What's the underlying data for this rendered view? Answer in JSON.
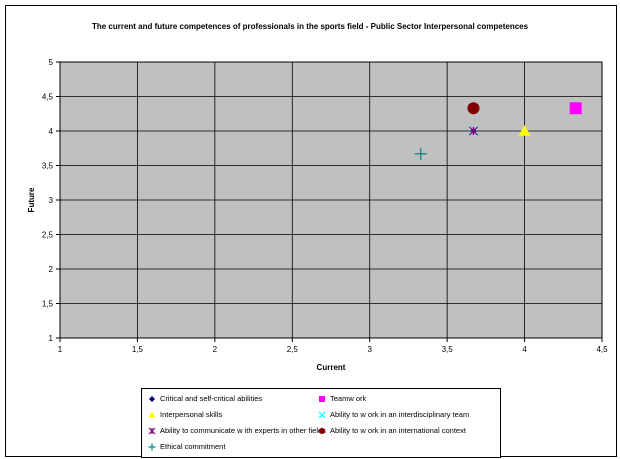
{
  "chart_data": {
    "type": "scatter",
    "title": "The current and future competences of professionals in the sports field - Public Sector Interpersonal competences",
    "xlabel": "Current",
    "ylabel": "Future",
    "xlim": [
      1,
      4.5
    ],
    "ylim": [
      1,
      5
    ],
    "xticks": [
      "1",
      "1,5",
      "2",
      "2,5",
      "3",
      "3,5",
      "4",
      "4,5"
    ],
    "yticks": [
      "1",
      "1,5",
      "2",
      "2,5",
      "3",
      "3,5",
      "4",
      "4,5",
      "5"
    ],
    "grid": true,
    "legend_position": "bottom",
    "series": [
      {
        "name": "Critical and self-critical abilities",
        "x": 3.67,
        "y": 4.0,
        "marker": "diamond",
        "color": "#000080"
      },
      {
        "name": "Teamw ork",
        "x": 4.33,
        "y": 4.33,
        "marker": "square",
        "color": "#ff00ff"
      },
      {
        "name": "Interpersonal skills",
        "x": 4.0,
        "y": 4.0,
        "marker": "triangle",
        "color": "#ffff00"
      },
      {
        "name": "Ability to w ork in an interdisciplinary team",
        "x": 3.67,
        "y": 4.0,
        "marker": "x",
        "color": "#00ffff"
      },
      {
        "name": "Ability to communicate w ith experts in other fields",
        "x": 3.67,
        "y": 4.0,
        "marker": "star",
        "color": "#800080"
      },
      {
        "name": "Ability to w ork in an international context",
        "x": 3.67,
        "y": 4.33,
        "marker": "circle",
        "color": "#800000"
      },
      {
        "name": "Ethical commitment",
        "x": 3.33,
        "y": 3.67,
        "marker": "plus",
        "color": "#008080"
      }
    ]
  }
}
